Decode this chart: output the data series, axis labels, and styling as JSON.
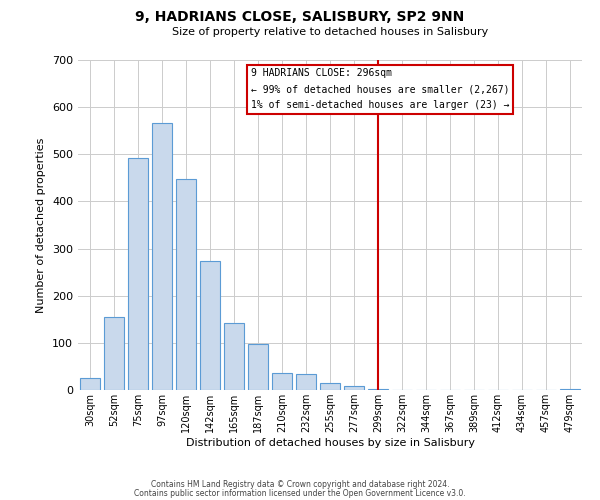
{
  "title": "9, HADRIANS CLOSE, SALISBURY, SP2 9NN",
  "subtitle": "Size of property relative to detached houses in Salisbury",
  "xlabel": "Distribution of detached houses by size in Salisbury",
  "ylabel": "Number of detached properties",
  "bar_labels": [
    "30sqm",
    "52sqm",
    "75sqm",
    "97sqm",
    "120sqm",
    "142sqm",
    "165sqm",
    "187sqm",
    "210sqm",
    "232sqm",
    "255sqm",
    "277sqm",
    "299sqm",
    "322sqm",
    "344sqm",
    "367sqm",
    "389sqm",
    "412sqm",
    "434sqm",
    "457sqm",
    "479sqm"
  ],
  "bar_values": [
    25,
    155,
    493,
    567,
    447,
    273,
    143,
    97,
    36,
    35,
    14,
    8,
    2,
    1,
    1,
    1,
    1,
    1,
    0,
    0,
    2
  ],
  "bar_color": "#c9d9ec",
  "bar_edge_color": "#5b9bd5",
  "vline_x": 12,
  "vline_color": "#cc0000",
  "annotation_title": "9 HADRIANS CLOSE: 296sqm",
  "annotation_line1": "← 99% of detached houses are smaller (2,267)",
  "annotation_line2": "1% of semi-detached houses are larger (23) →",
  "annotation_box_color": "#ffffff",
  "annotation_border_color": "#cc0000",
  "ylim": [
    0,
    700
  ],
  "yticks": [
    0,
    100,
    200,
    300,
    400,
    500,
    600,
    700
  ],
  "footer1": "Contains HM Land Registry data © Crown copyright and database right 2024.",
  "footer2": "Contains public sector information licensed under the Open Government Licence v3.0.",
  "background_color": "#ffffff",
  "grid_color": "#cccccc"
}
